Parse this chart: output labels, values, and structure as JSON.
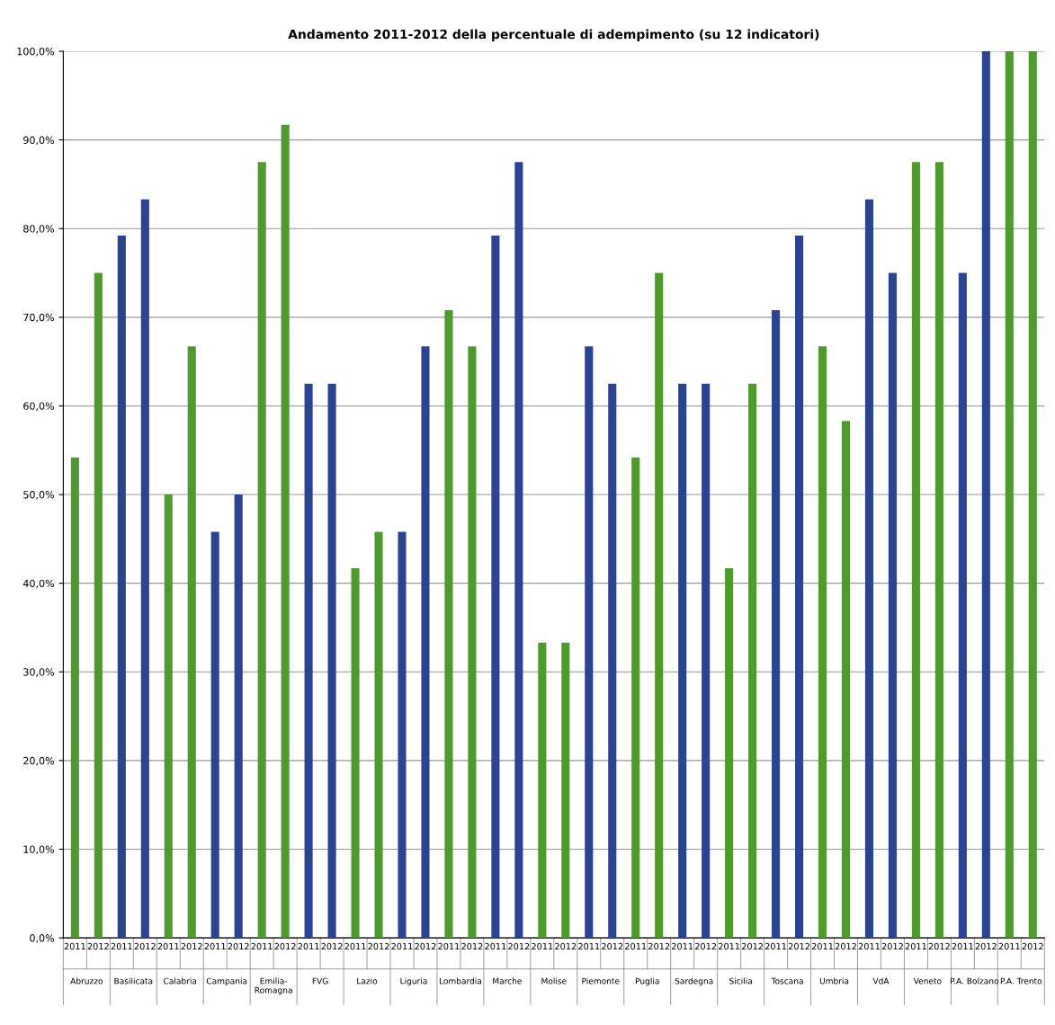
{
  "chart_data": {
    "type": "bar",
    "title": "Andamento 2011-2012 della percentuale di adempimento (su 12 indicatori)",
    "categories": [
      "2011",
      "2012",
      "2011",
      "2012",
      "2011",
      "2012",
      "2011",
      "2012",
      "2011",
      "2012",
      "2011",
      "2012",
      "2011",
      "2012",
      "2011",
      "2012",
      "2011",
      "2012",
      "2011",
      "2012",
      "2011",
      "2012",
      "2011",
      "2012",
      "2011",
      "2012",
      "2011",
      "2012",
      "2011",
      "2012",
      "2011",
      "2012",
      "2011",
      "2012",
      "2011",
      "2012",
      "2011",
      "2012",
      "2011",
      "2012",
      "2011",
      "2012"
    ],
    "values": [
      54.2,
      75.0,
      79.2,
      83.3,
      50.0,
      66.7,
      45.8,
      50.0,
      87.5,
      91.7,
      62.5,
      62.5,
      41.7,
      45.8,
      45.8,
      66.7,
      70.8,
      66.7,
      79.2,
      87.5,
      33.3,
      33.3,
      66.7,
      62.5,
      54.2,
      75.0,
      62.5,
      62.5,
      41.7,
      62.5,
      70.8,
      79.2,
      66.7,
      58.3,
      83.3,
      75.0,
      87.5,
      87.5,
      75.0,
      100.0,
      100.0,
      100.0
    ],
    "colors": [
      "#4e9a2e",
      "#4e9a2e",
      "#2b4391",
      "#2b4391",
      "#4e9a2e",
      "#4e9a2e",
      "#2b4391",
      "#2b4391",
      "#4e9a2e",
      "#4e9a2e",
      "#2b4391",
      "#2b4391",
      "#4e9a2e",
      "#4e9a2e",
      "#2b4391",
      "#2b4391",
      "#4e9a2e",
      "#4e9a2e",
      "#2b4391",
      "#2b4391",
      "#4e9a2e",
      "#4e9a2e",
      "#2b4391",
      "#2b4391",
      "#4e9a2e",
      "#4e9a2e",
      "#2b4391",
      "#2b4391",
      "#4e9a2e",
      "#4e9a2e",
      "#2b4391",
      "#2b4391",
      "#4e9a2e",
      "#4e9a2e",
      "#2b4391",
      "#2b4391",
      "#4e9a2e",
      "#4e9a2e",
      "#2b4391",
      "#2b4391",
      "#4e9a2e",
      "#4e9a2e"
    ],
    "annotations": [
      "Abruzzo",
      "Basilicata",
      "Calabria",
      "Campania",
      "Emilia-Romagna",
      "FVG",
      "Lazio",
      "Liguria",
      "Lombardia",
      "Marche",
      "Molise",
      "Piemonte",
      "Puglia",
      "Sardegna",
      "Sicilia",
      "Toscana",
      "Umbria",
      "VdA",
      "Veneto",
      "P.A. Bolzano",
      "P.A. Trento"
    ],
    "ylim": [
      0,
      100
    ],
    "yticks": [
      {
        "value": 0,
        "label": "0,0%"
      },
      {
        "value": 10,
        "label": "10,0%"
      },
      {
        "value": 20,
        "label": "20,0%"
      },
      {
        "value": 30,
        "label": "30,0%"
      },
      {
        "value": 40,
        "label": "40,0%"
      },
      {
        "value": 50,
        "label": "50,0%"
      },
      {
        "value": 60,
        "label": "60,0%"
      },
      {
        "value": 70,
        "label": "70,0%"
      },
      {
        "value": 80,
        "label": "80,0%"
      },
      {
        "value": 90,
        "label": "90,0%"
      },
      {
        "value": 100,
        "label": "100,0%"
      }
    ],
    "grid": "y"
  }
}
